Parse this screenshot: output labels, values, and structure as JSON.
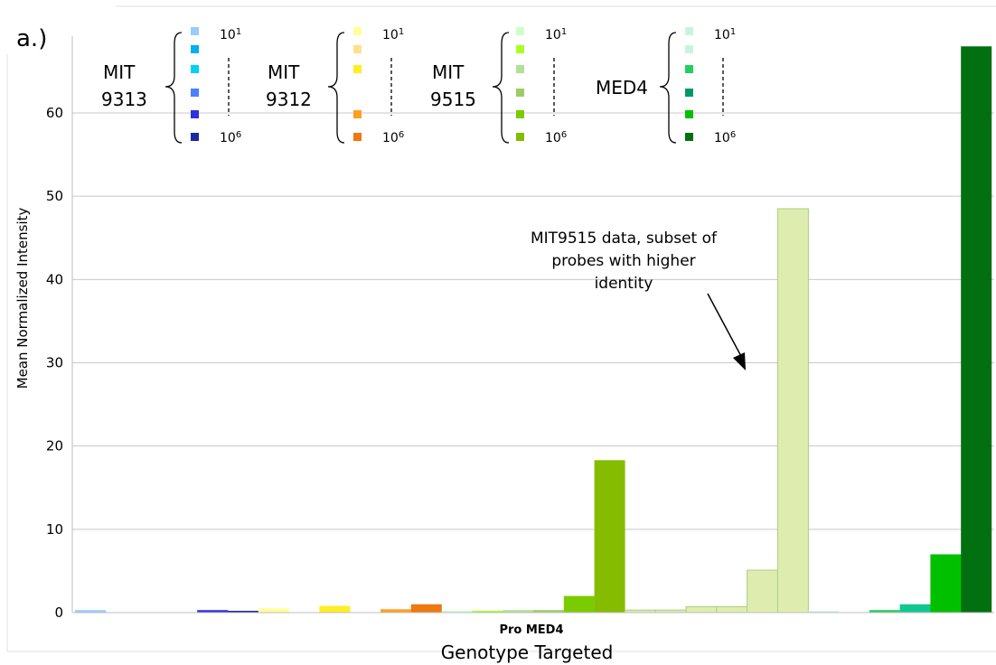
{
  "panel_label": "a.)",
  "chart_data": {
    "type": "bar",
    "title": "",
    "xlabel": "Genotype Targeted",
    "category_label": "Pro MED4",
    "ylabel": "Mean Normalized Intensity",
    "ylim": [
      0,
      70
    ],
    "yticks": [
      0,
      10,
      20,
      30,
      40,
      50,
      60
    ],
    "grid": true,
    "bars": [
      {
        "value": 0.3,
        "color": "#99ccff"
      },
      {
        "value": 0.0,
        "color": "#00b0f0"
      },
      {
        "value": 0.0,
        "color": "#00d0f8"
      },
      {
        "value": 0.0,
        "color": "#4a80ff"
      },
      {
        "value": 0.3,
        "color": "#3030e0"
      },
      {
        "value": 0.2,
        "color": "#1c2aa0"
      },
      {
        "value": 0.5,
        "color": "#ffff99"
      },
      {
        "value": 0.0,
        "color": "#ffe08c"
      },
      {
        "value": 0.8,
        "color": "#ffee22"
      },
      {
        "value": 0.0,
        "color": "#ffffff"
      },
      {
        "value": 0.4,
        "color": "#ffa020"
      },
      {
        "value": 1.0,
        "color": "#f07810"
      },
      {
        "value": 0.2,
        "color": "#ccffcc"
      },
      {
        "value": 0.1,
        "color": "#aaff22"
      },
      {
        "value": 0.3,
        "color": "#b2e096"
      },
      {
        "value": 0.3,
        "color": "#9ccc66"
      },
      {
        "value": 2.0,
        "color": "#7acc00"
      },
      {
        "value": 18.3,
        "color": "#86bc00"
      },
      {
        "value": 0.3,
        "color": "#deedaf"
      },
      {
        "value": 0.3,
        "color": "#deedaf"
      },
      {
        "value": 0.7,
        "color": "#deedaf"
      },
      {
        "value": 0.7,
        "color": "#deedaf"
      },
      {
        "value": 5.1,
        "color": "#deedaf"
      },
      {
        "value": 48.5,
        "color": "#deedaf"
      },
      {
        "value": 0.2,
        "color": "#d6f5e8"
      },
      {
        "value": 0.0,
        "color": "#c8f5d8"
      },
      {
        "value": 0.3,
        "color": "#22d060"
      },
      {
        "value": 1.0,
        "color": "#10c890"
      },
      {
        "value": 7.0,
        "color": "#00c000"
      },
      {
        "value": 68.0,
        "color": "#007010"
      }
    ],
    "annotation": {
      "lines": [
        "MIT9515 data, subset of",
        "probes with higher",
        "identity"
      ]
    },
    "legend": {
      "placement": "top",
      "top_label": "10",
      "top_exp": "1",
      "bottom_label": "10",
      "bottom_exp": "6",
      "groups": [
        {
          "name_lines": [
            "MIT",
            "9313"
          ],
          "colors": [
            "#99ccff",
            "#00b0f0",
            "#00d0f8",
            "#4a80ff",
            "#3030e0",
            "#1c2aa0"
          ]
        },
        {
          "name_lines": [
            "MIT",
            "9312"
          ],
          "colors": [
            "#ffff99",
            "#ffe08c",
            "#ffee22",
            "#ffffff",
            "#ffa020",
            "#f07810"
          ]
        },
        {
          "name_lines": [
            "MIT",
            "9515"
          ],
          "colors": [
            "#ccffcc",
            "#aaff22",
            "#b2e096",
            "#9ccc66",
            "#7acc00",
            "#86bc00"
          ]
        },
        {
          "name_lines": [
            "MED4"
          ],
          "colors": [
            "#c8f5d8",
            "#c8f5d8",
            "#22d060",
            "#009966",
            "#00c000",
            "#007010"
          ]
        }
      ]
    }
  }
}
